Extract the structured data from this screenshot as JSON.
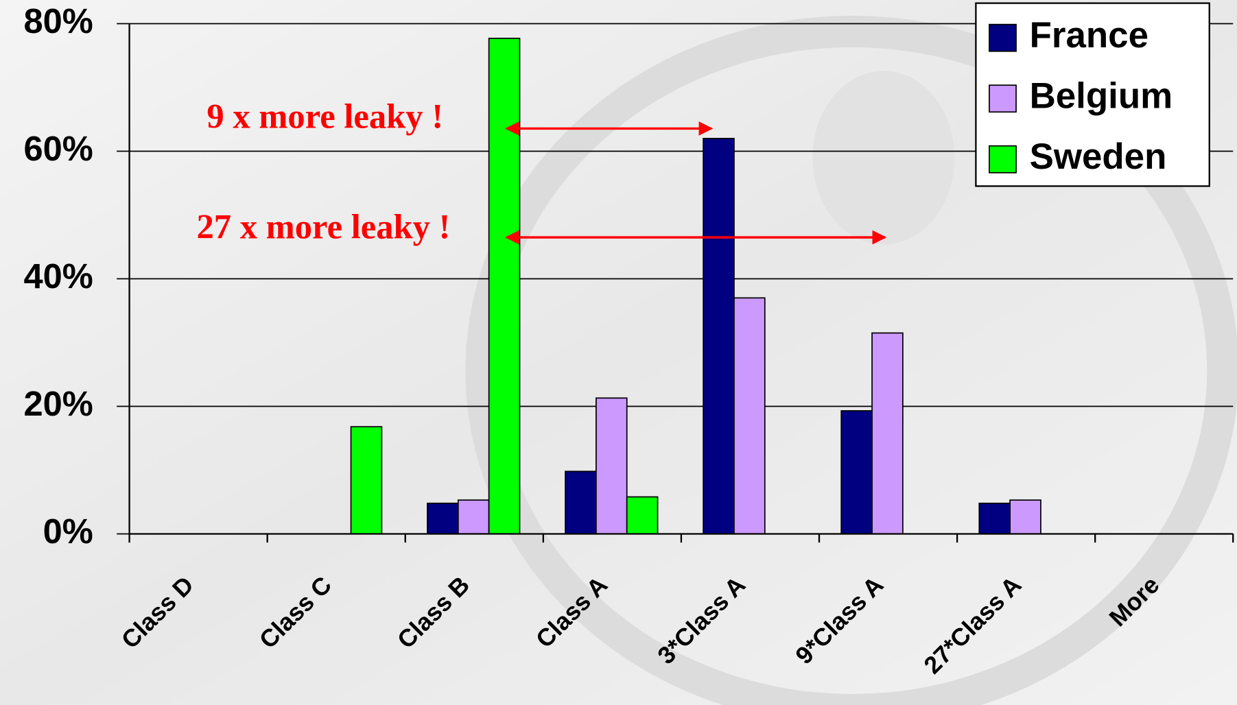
{
  "chart_data": {
    "type": "bar",
    "categories": [
      "Class D",
      "Class C",
      "Class B",
      "Class A",
      "3*Class A",
      "9*Class A",
      "27*Class A",
      "More"
    ],
    "series": [
      {
        "name": "France",
        "color": "#000080",
        "values": [
          0,
          0,
          4.8,
          9.8,
          62,
          19.3,
          4.8,
          0
        ]
      },
      {
        "name": "Belgium",
        "color": "#cc99ff",
        "values": [
          0,
          0,
          5.3,
          21.3,
          37,
          31.5,
          5.3,
          0
        ]
      },
      {
        "name": "Sweden",
        "color": "#00ff00",
        "values": [
          0,
          16.8,
          77.7,
          5.8,
          0,
          0,
          0,
          0
        ]
      }
    ],
    "ylim": [
      0,
      80
    ],
    "yticks": [
      {
        "value": 0,
        "label": "0%"
      },
      {
        "value": 20,
        "label": "20%"
      },
      {
        "value": 40,
        "label": "40%"
      },
      {
        "value": 60,
        "label": "60%"
      },
      {
        "value": 80,
        "label": "80%"
      }
    ],
    "grid": true,
    "legend": "top-right",
    "annotations": [
      "9 x more leaky !",
      "27 x more leaky !"
    ]
  }
}
